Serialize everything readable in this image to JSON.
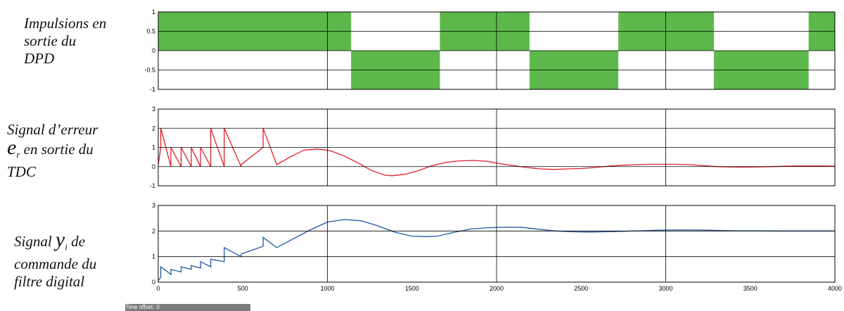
{
  "labels": {
    "pulses": [
      "Impulsions en",
      "sortie du",
      "DPD"
    ],
    "error": {
      "line1": "Signal d’erreur",
      "symbol": "e",
      "sub": "r",
      "line2_rest": " en sortie du",
      "line3": "TDC"
    },
    "control": {
      "word": "Signal ",
      "symbol": "y",
      "sub": "i",
      "word_after": " de",
      "line2": "commande du",
      "line3": "filtre digital"
    }
  },
  "status": {
    "label": "Time offset:",
    "value": "0"
  },
  "colors": {
    "pulses": "#5cb84a",
    "error": "#e0202a",
    "control": "#1f55a0",
    "grid": "#000000"
  },
  "chart_data": [
    {
      "type": "area",
      "ylim": [
        -1,
        1
      ],
      "yticks": [
        "1",
        "0.5",
        "0",
        "-0.5",
        "-1"
      ],
      "xlim": [
        0,
        4000
      ],
      "grid": true,
      "pulses": [
        {
          "x0": 0,
          "x1": 1140,
          "level": 1
        },
        {
          "x0": 1140,
          "x1": 1665,
          "level": -1
        },
        {
          "x0": 1665,
          "x1": 2195,
          "level": 1
        },
        {
          "x0": 2195,
          "x1": 2720,
          "level": -1
        },
        {
          "x0": 2720,
          "x1": 2735,
          "level": 1
        },
        {
          "x0": 2735,
          "x1": 3285,
          "level": 1
        },
        {
          "x0": 3285,
          "x1": 3300,
          "level": -1
        },
        {
          "x0": 3300,
          "x1": 3845,
          "level": -1
        },
        {
          "x0": 3845,
          "x1": 3890,
          "level": 1
        },
        {
          "x0": 3890,
          "x1": 4000,
          "level": 1
        }
      ]
    },
    {
      "type": "line",
      "ylim": [
        -1,
        3
      ],
      "yticks": [
        "3",
        "2",
        "1",
        "0",
        "-1"
      ],
      "xlim": [
        0,
        4000
      ],
      "grid": true,
      "x": [
        0,
        15,
        15,
        75,
        75,
        135,
        135,
        195,
        195,
        250,
        250,
        310,
        310,
        390,
        390,
        490,
        490,
        620,
        620,
        700,
        780,
        860,
        940,
        1020,
        1100,
        1180,
        1260,
        1340,
        1380,
        1460,
        1540,
        1620,
        1700,
        1780,
        1860,
        1940,
        2020,
        2100,
        2180,
        2260,
        2340,
        2420,
        2500,
        2580,
        2660,
        2740,
        2820,
        2900,
        2980,
        3060,
        3140,
        3220,
        3300,
        3380,
        3460,
        3540,
        3620,
        3700,
        3780,
        3860,
        3940,
        4000
      ],
      "y": [
        0.1,
        1,
        2,
        0,
        1,
        0,
        1,
        0,
        1,
        0,
        1,
        0,
        2,
        0,
        2,
        0,
        0.1,
        1,
        2,
        0.1,
        0.5,
        0.85,
        0.92,
        0.82,
        0.55,
        0.2,
        -0.2,
        -0.45,
        -0.48,
        -0.4,
        -0.2,
        0.05,
        0.22,
        0.3,
        0.32,
        0.28,
        0.15,
        0.05,
        -0.05,
        -0.12,
        -0.15,
        -0.12,
        -0.1,
        -0.05,
        0.02,
        0.07,
        0.1,
        0.12,
        0.12,
        0.12,
        0.1,
        0.05,
        0.0,
        -0.02,
        -0.03,
        -0.02,
        0.0,
        0.02,
        0.03,
        0.03,
        0.03,
        0.02
      ]
    },
    {
      "type": "line",
      "ylim": [
        0,
        3
      ],
      "yticks": [
        "3",
        "2",
        "1",
        "0"
      ],
      "xticks": [
        "0",
        "500",
        "1000",
        "1500",
        "2000",
        "2500",
        "3000",
        "3500",
        "4000"
      ],
      "xlim": [
        0,
        4000
      ],
      "grid": true,
      "x": [
        0,
        15,
        15,
        75,
        75,
        135,
        135,
        195,
        195,
        250,
        250,
        310,
        310,
        390,
        390,
        490,
        490,
        620,
        620,
        700,
        800,
        900,
        1000,
        1100,
        1200,
        1300,
        1400,
        1500,
        1580,
        1650,
        1750,
        1850,
        1950,
        2050,
        2150,
        2250,
        2350,
        2450,
        2550,
        2650,
        2750,
        2850,
        2950,
        3050,
        3150,
        3250,
        3350,
        3450,
        3550,
        3650,
        3750,
        3850,
        3950,
        4000
      ],
      "y": [
        0.05,
        0.2,
        0.6,
        0.3,
        0.5,
        0.4,
        0.6,
        0.5,
        0.65,
        0.55,
        0.8,
        0.6,
        0.9,
        0.8,
        1.35,
        1.0,
        1.1,
        1.4,
        1.75,
        1.35,
        1.7,
        2.05,
        2.35,
        2.45,
        2.4,
        2.2,
        1.95,
        1.8,
        1.78,
        1.8,
        1.95,
        2.08,
        2.13,
        2.15,
        2.14,
        2.07,
        2.0,
        1.97,
        1.96,
        1.97,
        1.99,
        2.01,
        2.03,
        2.04,
        2.04,
        2.03,
        2.02,
        2.01,
        2.01,
        2.0,
        2.0,
        2.0,
        2.0,
        2.0
      ]
    }
  ]
}
